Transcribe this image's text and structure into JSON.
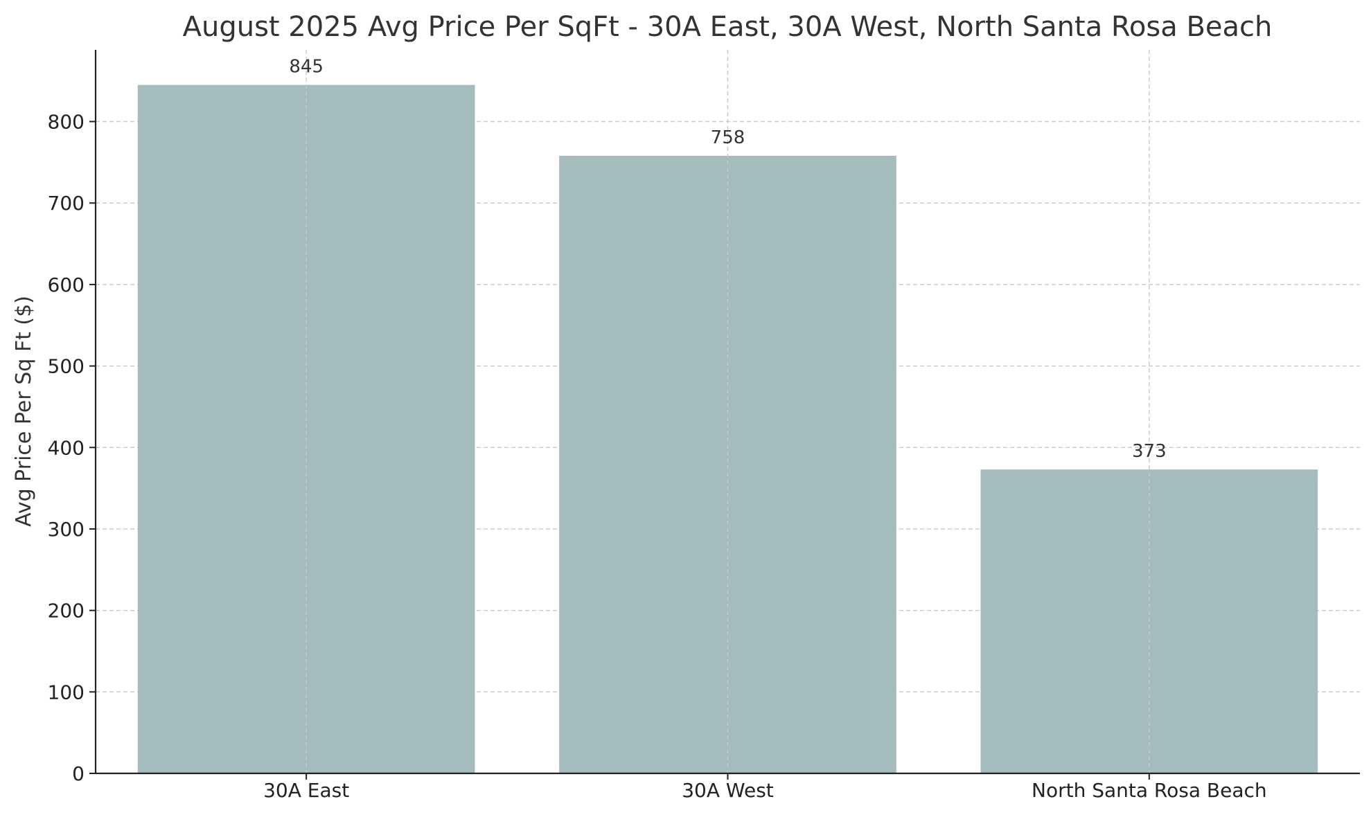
{
  "chart_data": {
    "type": "bar",
    "title": "August 2025 Avg Price Per SqFt - 30A East, 30A West, North Santa Rosa Beach",
    "xlabel": "",
    "ylabel": "Avg Price Per Sq Ft ($)",
    "categories": [
      "30A East",
      "30A West",
      "North Santa Rosa Beach"
    ],
    "values": [
      845,
      758,
      373
    ],
    "data_labels": [
      "845",
      "758",
      "373"
    ],
    "ylim": [
      0,
      888
    ],
    "yticks": [
      0,
      100,
      200,
      300,
      400,
      500,
      600,
      700,
      800
    ],
    "ytick_labels": [
      "0",
      "100",
      "200",
      "300",
      "400",
      "500",
      "600",
      "700",
      "800"
    ],
    "grid": true,
    "grid_style": "dashed",
    "bar_color": "#a5bcbe",
    "legend": false
  }
}
